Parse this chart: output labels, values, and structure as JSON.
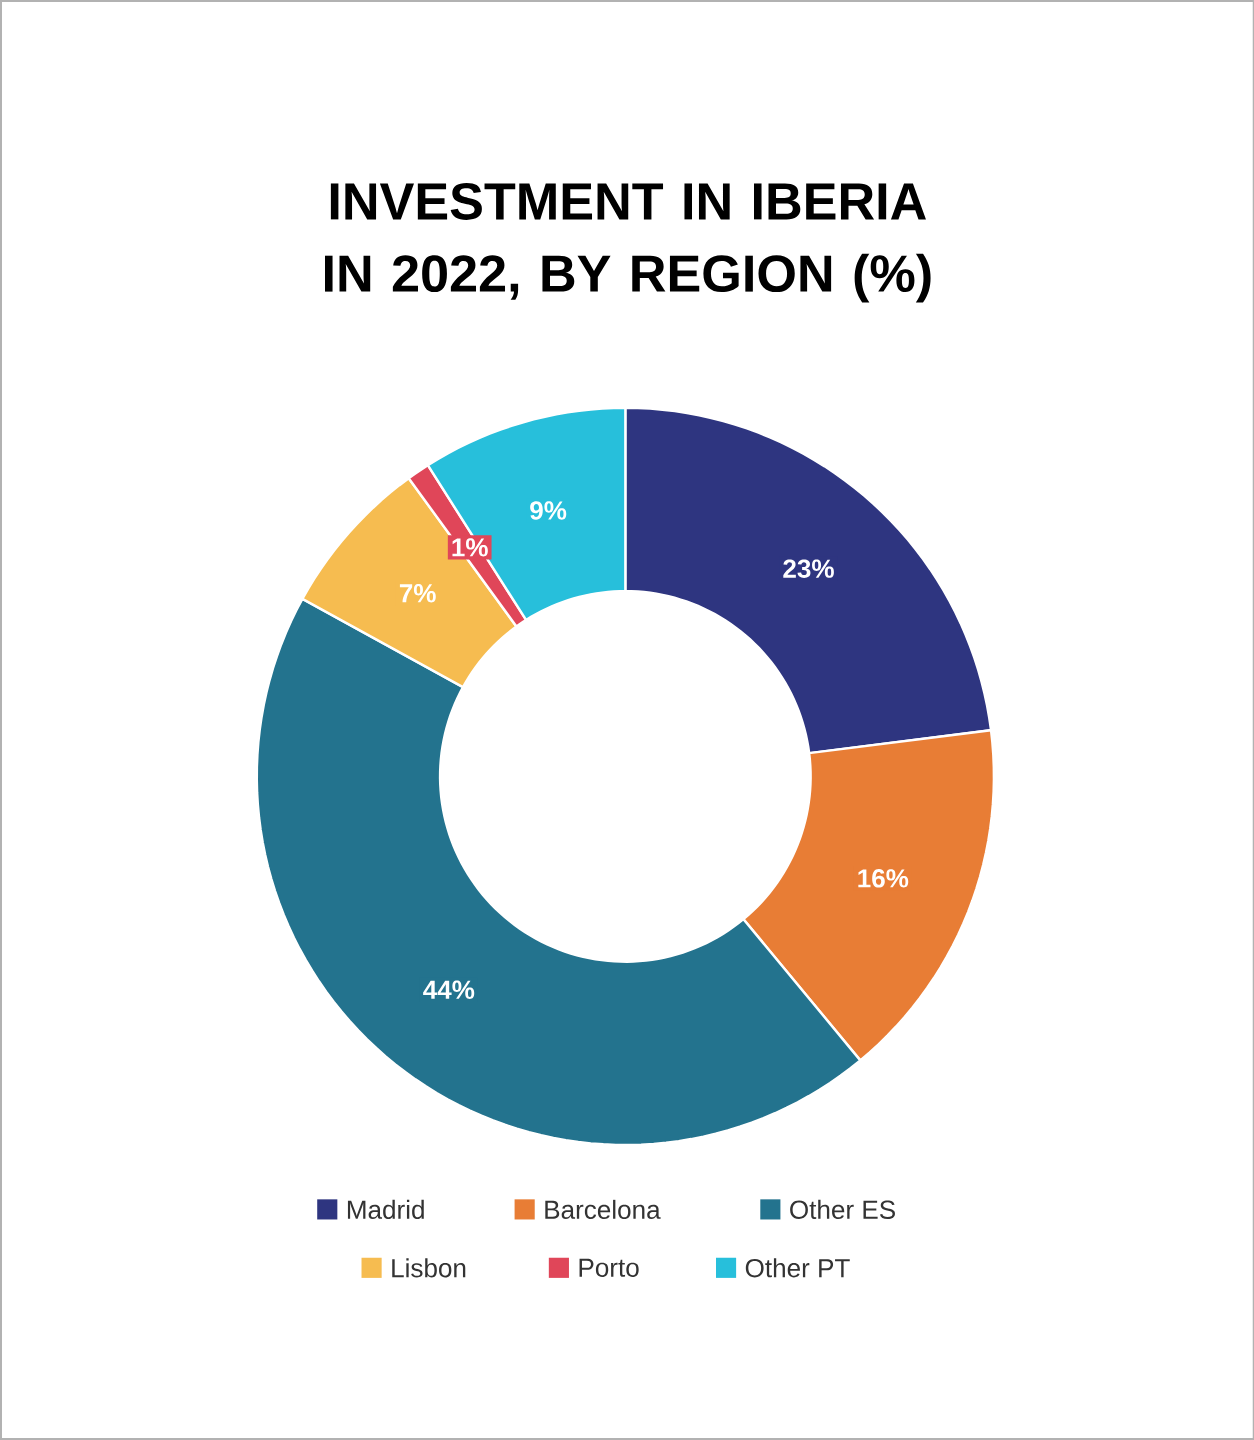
{
  "chart_data": {
    "type": "donut",
    "title": "INVESTMENT IN IBERIA IN 2022, BY REGION (%)",
    "categories": [
      "Madrid",
      "Barcelona",
      "Other ES",
      "Lisbon",
      "Porto",
      "Other PT"
    ],
    "values": [
      23,
      16,
      44,
      7,
      1,
      9
    ],
    "colors": [
      "#2e3580",
      "#e87d35",
      "#23738e",
      "#f6bc50",
      "#e04659",
      "#27bfdb"
    ],
    "value_labels": [
      "23%",
      "16%",
      "44%",
      "7%",
      "1%",
      "9%"
    ],
    "legend": "bottom"
  }
}
